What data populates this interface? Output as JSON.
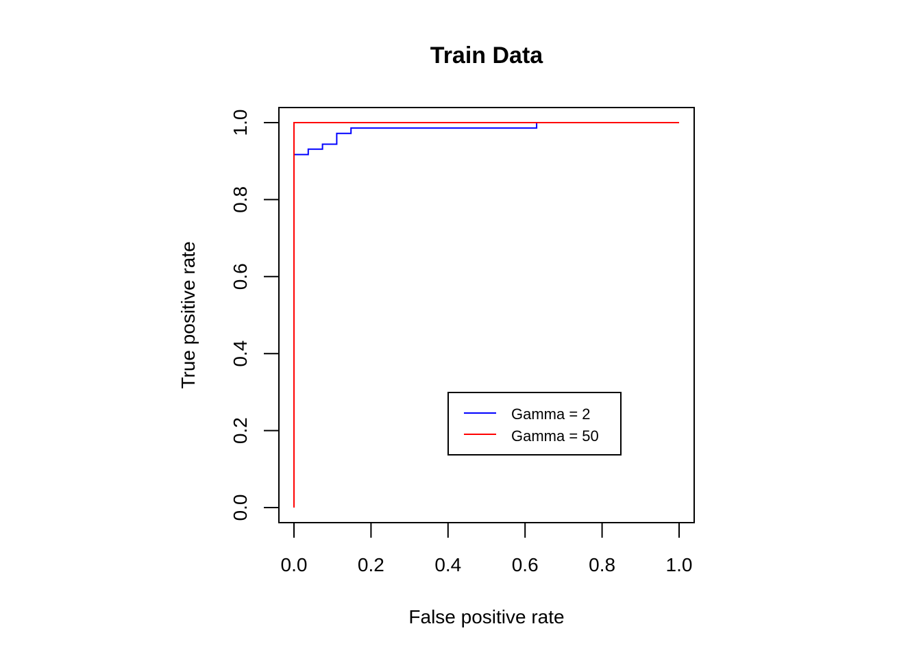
{
  "chart_data": {
    "type": "line",
    "title": "Train Data",
    "xlabel": "False positive rate",
    "ylabel": "True positive rate",
    "xlim": [
      0,
      1
    ],
    "ylim": [
      0,
      1
    ],
    "x_ticks": [
      "0.0",
      "0.2",
      "0.4",
      "0.6",
      "0.8",
      "1.0"
    ],
    "y_ticks": [
      "0.0",
      "0.2",
      "0.4",
      "0.6",
      "0.8",
      "1.0"
    ],
    "grid": false,
    "legend_position": "bottom-right",
    "series": [
      {
        "name": "Gamma = 2",
        "color": "#0000ff",
        "x": [
          0.0,
          0.0,
          0.037,
          0.037,
          0.074,
          0.074,
          0.111,
          0.111,
          0.148,
          0.148,
          0.63,
          0.63,
          1.0
        ],
        "y": [
          0.0,
          0.917,
          0.917,
          0.931,
          0.931,
          0.944,
          0.944,
          0.972,
          0.972,
          0.986,
          0.986,
          1.0,
          1.0
        ]
      },
      {
        "name": "Gamma = 50",
        "color": "#ff0000",
        "x": [
          0.0,
          0.0,
          1.0
        ],
        "y": [
          0.0,
          1.0,
          1.0
        ]
      }
    ]
  }
}
